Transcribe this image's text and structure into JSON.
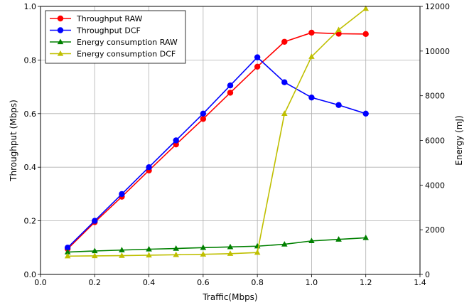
{
  "chart_data": {
    "type": "line",
    "xlabel": "Traffic(Mbps)",
    "ylabel": "Throughput (Mbps)",
    "y2label": "Energy (mJ)",
    "xlim": [
      0.0,
      1.4
    ],
    "ylim": [
      0.0,
      1.0
    ],
    "y2lim": [
      0,
      12000
    ],
    "xticks": [
      "0.0",
      "0.2",
      "0.4",
      "0.6",
      "0.8",
      "1.0",
      "1.2",
      "1.4"
    ],
    "yticks": [
      "0.0",
      "0.2",
      "0.4",
      "0.6",
      "0.8",
      "1.0"
    ],
    "y2ticks": [
      "0",
      "2000",
      "4000",
      "6000",
      "8000",
      "10000",
      "12000"
    ],
    "grid": true,
    "legend_position": "top-left",
    "series": [
      {
        "name": "Throughput RAW",
        "axis": "left",
        "color": "#ff0000",
        "marker": "circle",
        "x": [
          0.1,
          0.2,
          0.3,
          0.4,
          0.5,
          0.6,
          0.7,
          0.8,
          0.9,
          1.0,
          1.1,
          1.2
        ],
        "y": [
          0.095,
          0.195,
          0.29,
          0.388,
          0.485,
          0.58,
          0.678,
          0.775,
          0.868,
          0.902,
          0.898,
          0.897
        ]
      },
      {
        "name": "Throughput DCF",
        "axis": "left",
        "color": "#0000ff",
        "marker": "circle",
        "x": [
          0.1,
          0.2,
          0.3,
          0.4,
          0.5,
          0.6,
          0.7,
          0.8,
          0.9,
          1.0,
          1.1,
          1.2
        ],
        "y": [
          0.1,
          0.2,
          0.3,
          0.4,
          0.5,
          0.6,
          0.705,
          0.81,
          0.717,
          0.66,
          0.632,
          0.6
        ]
      },
      {
        "name": "Energy consumption RAW",
        "axis": "right",
        "color": "#008000",
        "marker": "triangle",
        "x": [
          0.1,
          0.2,
          0.3,
          0.4,
          0.5,
          0.6,
          0.7,
          0.8,
          0.9,
          1.0,
          1.1,
          1.2
        ],
        "y": [
          1000,
          1050,
          1090,
          1130,
          1160,
          1200,
          1230,
          1265,
          1350,
          1500,
          1570,
          1640
        ]
      },
      {
        "name": "Energy consumption DCF",
        "axis": "right",
        "color": "#bfbf00",
        "marker": "triangle",
        "x": [
          0.1,
          0.2,
          0.3,
          0.4,
          0.5,
          0.6,
          0.7,
          0.8,
          0.9,
          1.0,
          1.1,
          1.2
        ],
        "y": [
          820,
          830,
          840,
          860,
          880,
          900,
          930,
          980,
          7200,
          9750,
          10950,
          11900
        ]
      }
    ]
  }
}
